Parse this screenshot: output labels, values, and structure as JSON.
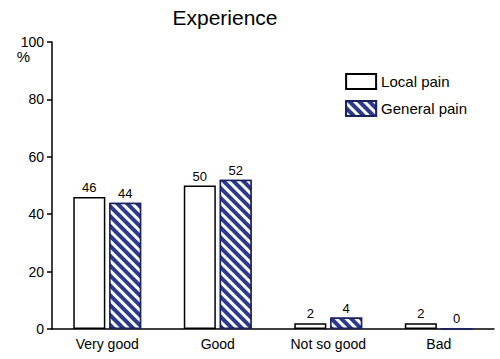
{
  "chart_data": {
    "type": "bar",
    "title": "Experience",
    "y_label": "%",
    "categories": [
      "Very good",
      "Good",
      "Not so good",
      "Bad"
    ],
    "series": [
      {
        "name": "Local pain",
        "color": "#ffffff",
        "values": [
          46,
          50,
          2,
          2
        ]
      },
      {
        "name": "General pain",
        "color": "#2b3a8c",
        "values": [
          44,
          52,
          4,
          0
        ]
      }
    ],
    "ylim": [
      0,
      100
    ],
    "yticks": [
      0,
      20,
      40,
      60,
      80,
      100
    ],
    "grid": false,
    "legend": "upper right",
    "data_labels": true
  }
}
